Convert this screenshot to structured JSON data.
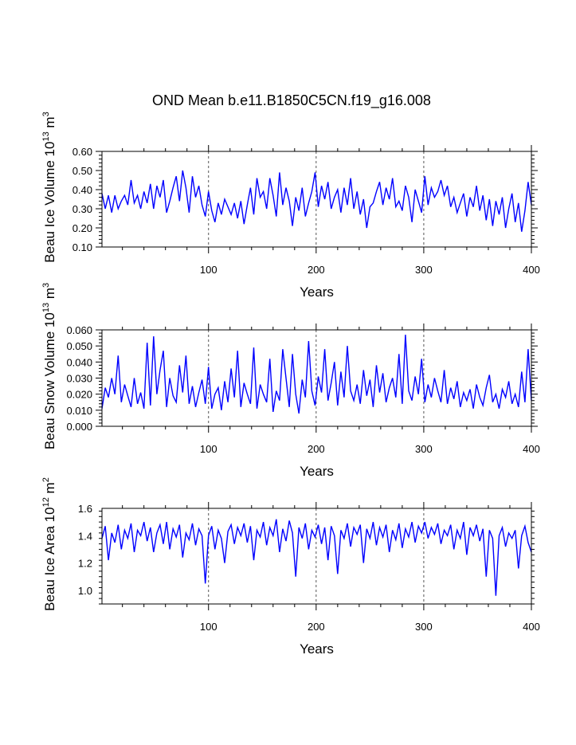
{
  "figure_title": "OND Mean b.e11.B1850C5CN.f19_g16.008",
  "chart_data": [
    {
      "type": "line",
      "ylabel": {
        "base": "Beau Ice Volume 10",
        "exp1": "13",
        "mid": " m",
        "exp2": "3"
      },
      "xlabel": "Years",
      "xlim": [
        1,
        400
      ],
      "ylim": [
        0.1,
        0.6
      ],
      "xticks": [
        100,
        200,
        300,
        400
      ],
      "yticks": [
        0.1,
        0.2,
        0.3,
        0.4,
        0.5,
        0.6
      ],
      "ytick_labels": [
        "0.10",
        "0.20",
        "0.30",
        "0.40",
        "0.50",
        "0.60"
      ],
      "line_color": "#0000ff",
      "series": [
        {
          "name": "Beau Ice Volume",
          "x": [
            1,
            4,
            7,
            10,
            13,
            16,
            19,
            22,
            25,
            28,
            31,
            34,
            37,
            40,
            43,
            46,
            49,
            52,
            55,
            58,
            61,
            64,
            67,
            70,
            73,
            76,
            79,
            82,
            85,
            88,
            91,
            94,
            97,
            100,
            103,
            106,
            109,
            112,
            115,
            118,
            121,
            124,
            127,
            130,
            133,
            136,
            139,
            142,
            145,
            148,
            151,
            154,
            157,
            160,
            163,
            166,
            169,
            172,
            175,
            178,
            181,
            184,
            187,
            190,
            193,
            196,
            199,
            202,
            205,
            208,
            211,
            214,
            217,
            220,
            223,
            226,
            229,
            232,
            235,
            238,
            241,
            244,
            247,
            250,
            253,
            256,
            259,
            262,
            265,
            268,
            271,
            274,
            277,
            280,
            283,
            286,
            289,
            292,
            295,
            298,
            301,
            304,
            307,
            310,
            313,
            316,
            319,
            322,
            325,
            328,
            331,
            334,
            337,
            340,
            343,
            346,
            349,
            352,
            355,
            358,
            361,
            364,
            367,
            370,
            373,
            376,
            379,
            382,
            385,
            388,
            391,
            394,
            397,
            400
          ],
          "values": [
            0.38,
            0.3,
            0.37,
            0.28,
            0.37,
            0.3,
            0.34,
            0.37,
            0.32,
            0.45,
            0.33,
            0.37,
            0.3,
            0.39,
            0.33,
            0.43,
            0.3,
            0.42,
            0.36,
            0.45,
            0.28,
            0.34,
            0.41,
            0.47,
            0.34,
            0.5,
            0.41,
            0.28,
            0.47,
            0.36,
            0.42,
            0.32,
            0.26,
            0.39,
            0.29,
            0.23,
            0.33,
            0.27,
            0.35,
            0.31,
            0.27,
            0.33,
            0.25,
            0.34,
            0.22,
            0.32,
            0.41,
            0.27,
            0.46,
            0.36,
            0.39,
            0.3,
            0.46,
            0.37,
            0.26,
            0.49,
            0.32,
            0.41,
            0.34,
            0.21,
            0.36,
            0.29,
            0.41,
            0.26,
            0.33,
            0.39,
            0.49,
            0.31,
            0.42,
            0.35,
            0.44,
            0.3,
            0.36,
            0.4,
            0.28,
            0.41,
            0.32,
            0.46,
            0.3,
            0.39,
            0.27,
            0.35,
            0.2,
            0.31,
            0.33,
            0.39,
            0.44,
            0.32,
            0.41,
            0.35,
            0.46,
            0.31,
            0.34,
            0.29,
            0.42,
            0.36,
            0.23,
            0.4,
            0.34,
            0.28,
            0.47,
            0.32,
            0.41,
            0.36,
            0.39,
            0.45,
            0.37,
            0.42,
            0.31,
            0.36,
            0.28,
            0.33,
            0.38,
            0.26,
            0.36,
            0.31,
            0.42,
            0.29,
            0.37,
            0.24,
            0.35,
            0.21,
            0.34,
            0.27,
            0.36,
            0.2,
            0.3,
            0.38,
            0.23,
            0.33,
            0.18,
            0.29,
            0.44,
            0.32
          ]
        }
      ],
      "bg": false
    },
    {
      "type": "line",
      "ylabel": {
        "base": "Beau Snow Volume 10",
        "exp1": "13",
        "mid": " m",
        "exp2": "3"
      },
      "xlabel": "Years",
      "xlim": [
        1,
        400
      ],
      "ylim": [
        0.0,
        0.06
      ],
      "xticks": [
        100,
        200,
        300,
        400
      ],
      "yticks": [
        0.0,
        0.01,
        0.02,
        0.03,
        0.04,
        0.05,
        0.06
      ],
      "ytick_labels": [
        "0.000",
        "0.010",
        "0.020",
        "0.030",
        "0.040",
        "0.050",
        "0.060"
      ],
      "line_color": "#0000ff",
      "series": [
        {
          "name": "Beau Snow Volume",
          "x": [
            1,
            4,
            7,
            10,
            13,
            16,
            19,
            22,
            25,
            28,
            31,
            34,
            37,
            40,
            43,
            46,
            49,
            52,
            55,
            58,
            61,
            64,
            67,
            70,
            73,
            76,
            79,
            82,
            85,
            88,
            91,
            94,
            97,
            100,
            103,
            106,
            109,
            112,
            115,
            118,
            121,
            124,
            127,
            130,
            133,
            136,
            139,
            142,
            145,
            148,
            151,
            154,
            157,
            160,
            163,
            166,
            169,
            172,
            175,
            178,
            181,
            184,
            187,
            190,
            193,
            196,
            199,
            202,
            205,
            208,
            211,
            214,
            217,
            220,
            223,
            226,
            229,
            232,
            235,
            238,
            241,
            244,
            247,
            250,
            253,
            256,
            259,
            262,
            265,
            268,
            271,
            274,
            277,
            280,
            283,
            286,
            289,
            292,
            295,
            298,
            301,
            304,
            307,
            310,
            313,
            316,
            319,
            322,
            325,
            328,
            331,
            334,
            337,
            340,
            343,
            346,
            349,
            352,
            355,
            358,
            361,
            364,
            367,
            370,
            373,
            376,
            379,
            382,
            385,
            388,
            391,
            394,
            397,
            400
          ],
          "values": [
            0.011,
            0.024,
            0.018,
            0.03,
            0.02,
            0.044,
            0.015,
            0.026,
            0.019,
            0.012,
            0.03,
            0.014,
            0.021,
            0.011,
            0.052,
            0.013,
            0.056,
            0.02,
            0.035,
            0.047,
            0.012,
            0.03,
            0.019,
            0.015,
            0.038,
            0.021,
            0.044,
            0.014,
            0.025,
            0.012,
            0.021,
            0.029,
            0.014,
            0.037,
            0.011,
            0.02,
            0.024,
            0.01,
            0.028,
            0.015,
            0.036,
            0.018,
            0.047,
            0.012,
            0.027,
            0.02,
            0.014,
            0.049,
            0.011,
            0.026,
            0.02,
            0.015,
            0.042,
            0.009,
            0.022,
            0.016,
            0.048,
            0.03,
            0.012,
            0.045,
            0.02,
            0.008,
            0.029,
            0.018,
            0.053,
            0.022,
            0.013,
            0.031,
            0.021,
            0.048,
            0.016,
            0.027,
            0.04,
            0.013,
            0.034,
            0.018,
            0.05,
            0.022,
            0.016,
            0.026,
            0.014,
            0.035,
            0.019,
            0.029,
            0.012,
            0.038,
            0.021,
            0.033,
            0.015,
            0.024,
            0.03,
            0.018,
            0.045,
            0.014,
            0.057,
            0.022,
            0.016,
            0.031,
            0.02,
            0.042,
            0.015,
            0.026,
            0.018,
            0.03,
            0.022,
            0.015,
            0.035,
            0.014,
            0.024,
            0.017,
            0.028,
            0.012,
            0.021,
            0.016,
            0.023,
            0.011,
            0.026,
            0.018,
            0.013,
            0.024,
            0.032,
            0.015,
            0.02,
            0.011,
            0.023,
            0.018,
            0.028,
            0.014,
            0.02,
            0.012,
            0.034,
            0.015,
            0.048,
            0.016
          ]
        }
      ],
      "bg": false
    },
    {
      "type": "line",
      "ylabel": {
        "base": "Beau Ice Area 10",
        "exp1": "12",
        "mid": " m",
        "exp2": "2"
      },
      "xlabel": "Years",
      "xlim": [
        1,
        400
      ],
      "ylim": [
        0.9,
        1.6
      ],
      "xticks": [
        100,
        200,
        300,
        400
      ],
      "yticks": [
        1.0,
        1.2,
        1.4,
        1.6
      ],
      "ytick_labels": [
        "1.0",
        "1.2",
        "1.4",
        "1.6"
      ],
      "line_color": "#0000ff",
      "series": [
        {
          "name": "Beau Ice Area",
          "x": [
            1,
            4,
            7,
            10,
            13,
            16,
            19,
            22,
            25,
            28,
            31,
            34,
            37,
            40,
            43,
            46,
            49,
            52,
            55,
            58,
            61,
            64,
            67,
            70,
            73,
            76,
            79,
            82,
            85,
            88,
            91,
            94,
            97,
            100,
            103,
            106,
            109,
            112,
            115,
            118,
            121,
            124,
            127,
            130,
            133,
            136,
            139,
            142,
            145,
            148,
            151,
            154,
            157,
            160,
            163,
            166,
            169,
            172,
            175,
            178,
            181,
            184,
            187,
            190,
            193,
            196,
            199,
            202,
            205,
            208,
            211,
            214,
            217,
            220,
            223,
            226,
            229,
            232,
            235,
            238,
            241,
            244,
            247,
            250,
            253,
            256,
            259,
            262,
            265,
            268,
            271,
            274,
            277,
            280,
            283,
            286,
            289,
            292,
            295,
            298,
            301,
            304,
            307,
            310,
            313,
            316,
            319,
            322,
            325,
            328,
            331,
            334,
            337,
            340,
            343,
            346,
            349,
            352,
            355,
            358,
            361,
            364,
            367,
            370,
            373,
            376,
            379,
            382,
            385,
            388,
            391,
            394,
            397,
            400
          ],
          "values": [
            1.38,
            1.47,
            1.22,
            1.42,
            1.35,
            1.48,
            1.3,
            1.44,
            1.38,
            1.49,
            1.28,
            1.44,
            1.4,
            1.5,
            1.36,
            1.46,
            1.28,
            1.42,
            1.48,
            1.34,
            1.5,
            1.3,
            1.45,
            1.39,
            1.48,
            1.24,
            1.42,
            1.37,
            1.49,
            1.33,
            1.45,
            1.4,
            1.05,
            1.4,
            1.47,
            1.3,
            1.44,
            1.38,
            1.2,
            1.43,
            1.48,
            1.34,
            1.46,
            1.4,
            1.49,
            1.35,
            1.47,
            1.22,
            1.44,
            1.39,
            1.5,
            1.33,
            1.46,
            1.4,
            1.52,
            1.28,
            1.45,
            1.36,
            1.51,
            1.42,
            1.1,
            1.46,
            1.38,
            1.49,
            1.3,
            1.44,
            1.39,
            1.48,
            1.34,
            1.46,
            1.22,
            1.47,
            1.4,
            1.12,
            1.44,
            1.38,
            1.49,
            1.32,
            1.46,
            1.41,
            1.48,
            1.2,
            1.45,
            1.38,
            1.5,
            1.33,
            1.46,
            1.39,
            1.48,
            1.28,
            1.44,
            1.37,
            1.49,
            1.31,
            1.45,
            1.39,
            1.5,
            1.35,
            1.47,
            1.42,
            1.5,
            1.38,
            1.46,
            1.41,
            1.49,
            1.34,
            1.44,
            1.4,
            1.48,
            1.3,
            1.44,
            1.38,
            1.5,
            1.26,
            1.46,
            1.4,
            1.48,
            1.36,
            1.45,
            1.1,
            1.44,
            1.38,
            0.96,
            1.4,
            1.46,
            1.32,
            1.42,
            1.38,
            1.44,
            1.16,
            1.4,
            1.47,
            1.35,
            1.28
          ]
        }
      ],
      "bg": false
    }
  ]
}
